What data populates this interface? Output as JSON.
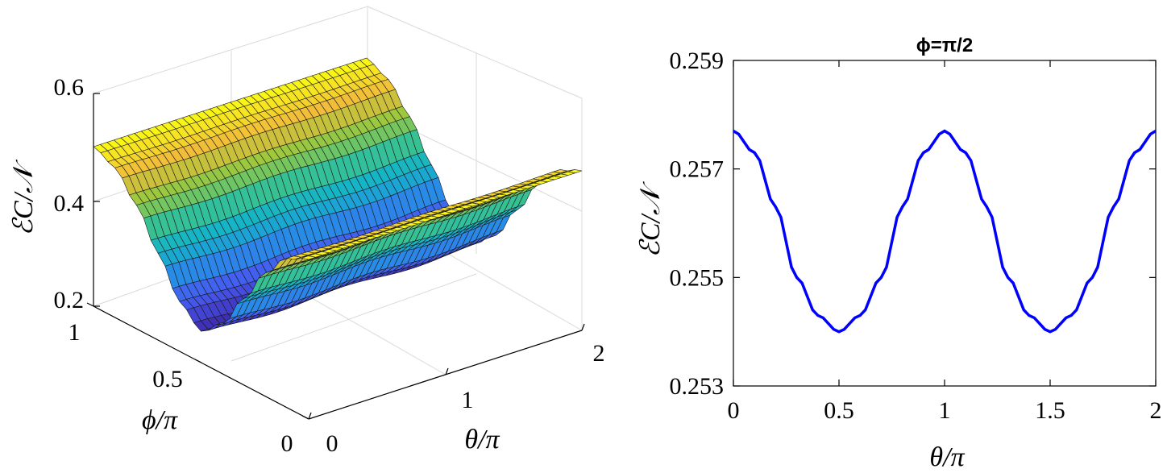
{
  "chart_data": [
    {
      "type": "surface",
      "title": "",
      "xlabel": "θ/π",
      "ylabel": "ϕ/π",
      "zlabel": "ℰC/𝒩",
      "xlim": [
        0,
        2
      ],
      "ylim": [
        0,
        1
      ],
      "zlim": [
        0.2,
        0.6
      ],
      "xticks": [
        "0",
        "1",
        "2"
      ],
      "yticks": [
        "0",
        "0.5",
        "1"
      ],
      "zticks": [
        "0.2",
        "0.4",
        "0.6"
      ],
      "colormap": "parula",
      "grid": true,
      "surface_profile": {
        "phi": [
          0,
          0.1,
          0.2,
          0.3,
          0.4,
          0.5,
          0.6,
          0.7,
          0.8,
          0.9,
          1.0
        ],
        "value_at_theta0": [
          0.5,
          0.48,
          0.43,
          0.36,
          0.29,
          0.255,
          0.29,
          0.36,
          0.43,
          0.48,
          0.5
        ]
      }
    },
    {
      "type": "line",
      "title": "ϕ=π/2",
      "xlabel": "θ/π",
      "ylabel": "ℰC/𝒩",
      "xlim": [
        0,
        2
      ],
      "ylim": [
        0.253,
        0.259
      ],
      "xticks": [
        "0",
        "0.5",
        "1",
        "1.5",
        "2"
      ],
      "yticks": [
        "0.253",
        "0.255",
        "0.257",
        "0.259"
      ],
      "grid": false,
      "series": [
        {
          "color": "#0000ff",
          "x": [
            0,
            0.1,
            0.2,
            0.3,
            0.4,
            0.5,
            0.6,
            0.7,
            0.8,
            0.9,
            1.0,
            1.1,
            1.2,
            1.3,
            1.4,
            1.5,
            1.6,
            1.7,
            1.8,
            1.9,
            2.0
          ],
          "y": [
            0.2577,
            0.2573,
            0.2563,
            0.255,
            0.2543,
            0.254,
            0.2543,
            0.255,
            0.2563,
            0.2573,
            0.2577,
            0.2573,
            0.2563,
            0.255,
            0.2543,
            0.254,
            0.2543,
            0.255,
            0.2563,
            0.2573,
            0.2577
          ]
        }
      ]
    }
  ]
}
